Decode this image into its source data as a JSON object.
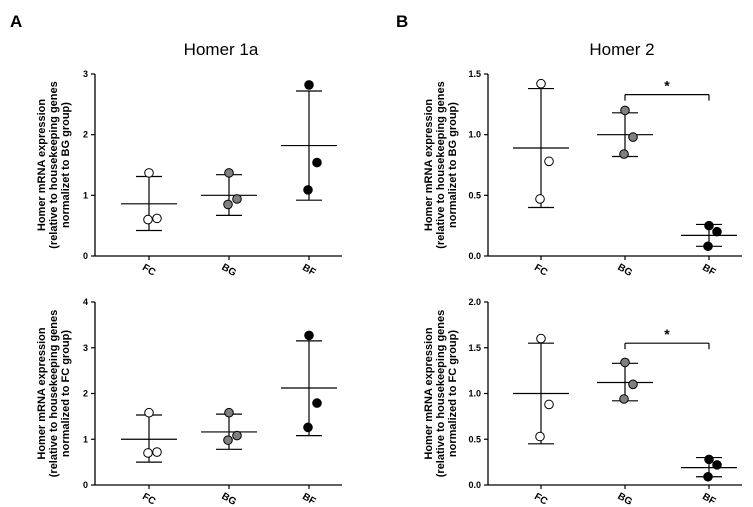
{
  "panels": {
    "A": "A",
    "B": "B",
    "titles": {
      "left": "Homer 1a",
      "right": "Homer 2"
    }
  },
  "chart_data": [
    {
      "type": "scatter",
      "panel": "A",
      "title": "Homer 1a",
      "ylabel_lines": [
        "Homer mRNA expression",
        "(relative to housekeeping genes",
        "normalizet to BG group)"
      ],
      "categories": [
        "FC",
        "BG",
        "BF"
      ],
      "ylim": [
        0,
        3
      ],
      "yticks": [
        0,
        1,
        2,
        3
      ],
      "ytick_labels": [
        "0",
        "1",
        "2",
        "3"
      ],
      "groups": [
        {
          "category": "FC",
          "fill": "#ffffff",
          "points": [
            1.37,
            0.62,
            0.6
          ],
          "mean": 0.86,
          "sd_low": 0.42,
          "sd_high": 1.31
        },
        {
          "category": "BG",
          "fill": "#808080",
          "points": [
            1.37,
            0.94,
            0.85
          ],
          "mean": 1.0,
          "sd_low": 0.67,
          "sd_high": 1.34
        },
        {
          "category": "BF",
          "fill": "#000000",
          "points": [
            2.82,
            1.54,
            1.09
          ],
          "mean": 1.82,
          "sd_low": 0.92,
          "sd_high": 2.72
        }
      ],
      "significance": null
    },
    {
      "type": "scatter",
      "panel": "B",
      "title": "Homer 2",
      "ylabel_lines": [
        "Homer mRNA expression",
        "(relative to housekeeping genes",
        "normalizet to BG group)"
      ],
      "categories": [
        "FC",
        "BG",
        "BF"
      ],
      "ylim": [
        0,
        1.5
      ],
      "yticks": [
        0,
        0.5,
        1.0,
        1.5
      ],
      "ytick_labels": [
        "0.0",
        "0.5",
        "1.0",
        "1.5"
      ],
      "groups": [
        {
          "category": "FC",
          "fill": "#ffffff",
          "points": [
            1.42,
            0.78,
            0.47
          ],
          "mean": 0.89,
          "sd_low": 0.4,
          "sd_high": 1.38
        },
        {
          "category": "BG",
          "fill": "#808080",
          "points": [
            1.2,
            0.98,
            0.84
          ],
          "mean": 1.0,
          "sd_low": 0.82,
          "sd_high": 1.18
        },
        {
          "category": "BF",
          "fill": "#000000",
          "points": [
            0.25,
            0.2,
            0.08
          ],
          "mean": 0.17,
          "sd_low": 0.08,
          "sd_high": 0.26
        }
      ],
      "significance": {
        "from": "BG",
        "to": "BF",
        "y": 1.33,
        "label": "*"
      }
    },
    {
      "type": "scatter",
      "panel": "A",
      "title": "",
      "ylabel_lines": [
        "Homer mRNA expression",
        "(relative to housekeeping genes",
        "normalized to FC group)"
      ],
      "categories": [
        "FC",
        "BG",
        "BF"
      ],
      "ylim": [
        0,
        4
      ],
      "yticks": [
        0,
        1,
        2,
        3,
        4
      ],
      "ytick_labels": [
        "0",
        "1",
        "2",
        "3",
        "4"
      ],
      "groups": [
        {
          "category": "FC",
          "fill": "#ffffff",
          "points": [
            1.58,
            0.72,
            0.7
          ],
          "mean": 1.0,
          "sd_low": 0.5,
          "sd_high": 1.53
        },
        {
          "category": "BG",
          "fill": "#808080",
          "points": [
            1.58,
            1.08,
            0.98
          ],
          "mean": 1.16,
          "sd_low": 0.78,
          "sd_high": 1.55
        },
        {
          "category": "BF",
          "fill": "#000000",
          "points": [
            3.27,
            1.79,
            1.26
          ],
          "mean": 2.12,
          "sd_low": 1.08,
          "sd_high": 3.15
        }
      ],
      "significance": null
    },
    {
      "type": "scatter",
      "panel": "B",
      "title": "",
      "ylabel_lines": [
        "Homer mRNA expression",
        "(relative to housekeeping genes",
        "normalized to FC group)"
      ],
      "categories": [
        "FC",
        "BG",
        "BF"
      ],
      "ylim": [
        0,
        2.0
      ],
      "yticks": [
        0,
        0.5,
        1.0,
        1.5,
        2.0
      ],
      "ytick_labels": [
        "0.0",
        "0.5",
        "1.0",
        "1.5",
        "2.0"
      ],
      "groups": [
        {
          "category": "FC",
          "fill": "#ffffff",
          "points": [
            1.6,
            0.88,
            0.53
          ],
          "mean": 1.0,
          "sd_low": 0.45,
          "sd_high": 1.55
        },
        {
          "category": "BG",
          "fill": "#808080",
          "points": [
            1.34,
            1.1,
            0.94
          ],
          "mean": 1.12,
          "sd_low": 0.92,
          "sd_high": 1.33
        },
        {
          "category": "BF",
          "fill": "#000000",
          "points": [
            0.28,
            0.22,
            0.09
          ],
          "mean": 0.19,
          "sd_low": 0.09,
          "sd_high": 0.3
        }
      ],
      "significance": {
        "from": "BG",
        "to": "BF",
        "y": 1.55,
        "label": "*"
      }
    }
  ]
}
